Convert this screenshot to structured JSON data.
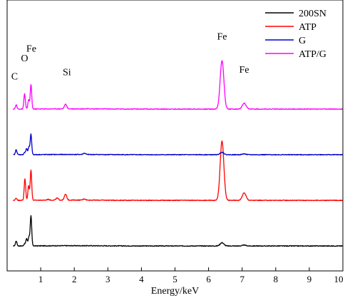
{
  "chart_data": {
    "type": "line",
    "title": "",
    "xlabel": "Energy/keV",
    "ylabel": "",
    "xlim": [
      0,
      10
    ],
    "xticks": [
      1,
      2,
      3,
      4,
      5,
      6,
      7,
      8,
      9,
      10
    ],
    "tick_labels": [
      "1",
      "2",
      "3",
      "4",
      "5",
      "6",
      "7",
      "8",
      "9",
      "10"
    ],
    "y_axis_shown": false,
    "grid": false,
    "legend_position": "top-right",
    "series": [
      {
        "name": "200SN",
        "color": "#000000",
        "offset": 0,
        "peaks": [
          [
            0.27,
            0.12
          ],
          [
            0.52,
            0.05
          ],
          [
            0.58,
            0.18
          ],
          [
            0.65,
            0.22
          ],
          [
            0.71,
            0.72
          ],
          [
            6.4,
            0.08
          ],
          [
            7.06,
            0.02
          ]
        ]
      },
      {
        "name": "ATP",
        "color": "#ff0000",
        "offset": 1,
        "peaks": [
          [
            0.27,
            0.05
          ],
          [
            0.53,
            0.52
          ],
          [
            0.64,
            0.35
          ],
          [
            0.71,
            0.73
          ],
          [
            1.22,
            0.02
          ],
          [
            1.49,
            0.05
          ],
          [
            1.74,
            0.14
          ],
          [
            2.3,
            0.03
          ],
          [
            6.4,
            1.43
          ],
          [
            7.06,
            0.18
          ]
        ]
      },
      {
        "name": "G",
        "color": "#0000cc",
        "offset": 2,
        "peaks": [
          [
            0.27,
            0.12
          ],
          [
            0.52,
            0.05
          ],
          [
            0.58,
            0.15
          ],
          [
            0.65,
            0.18
          ],
          [
            0.71,
            0.49
          ],
          [
            2.3,
            0.03
          ],
          [
            6.4,
            0.06
          ],
          [
            7.06,
            0.02
          ]
        ]
      },
      {
        "name": "ATP/G",
        "color": "#ff00ff",
        "offset": 3,
        "peaks": [
          [
            0.27,
            0.1
          ],
          [
            0.52,
            0.37
          ],
          [
            0.64,
            0.22
          ],
          [
            0.71,
            0.59
          ],
          [
            1.74,
            0.11
          ],
          [
            6.4,
            1.18
          ],
          [
            7.06,
            0.14
          ]
        ]
      }
    ],
    "annotations": [
      {
        "text": "C",
        "x": 0.22,
        "y_level": 3.65
      },
      {
        "text": "O",
        "x": 0.52,
        "y_level": 4.05
      },
      {
        "text": "Fe",
        "x": 0.72,
        "y_level": 4.26
      },
      {
        "text": "Si",
        "x": 1.78,
        "y_level": 3.74
      },
      {
        "text": "Fe",
        "x": 6.4,
        "y_level": 4.52
      },
      {
        "text": "Fe",
        "x": 7.06,
        "y_level": 3.8
      }
    ]
  }
}
